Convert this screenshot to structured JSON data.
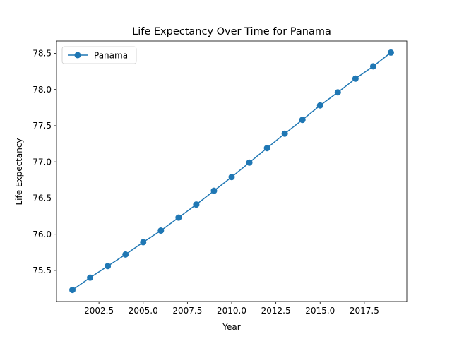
{
  "chart_data": {
    "type": "line",
    "title": "Life Expectancy Over Time for Panama",
    "xlabel": "Year",
    "ylabel": "Life Expectancy",
    "xlim": [
      2000.1,
      2019.9
    ],
    "ylim": [
      75.07,
      78.67
    ],
    "x_ticks": [
      2002.5,
      2005.0,
      2007.5,
      2010.0,
      2012.5,
      2015.0,
      2017.5
    ],
    "x_tick_labels": [
      "2002.5",
      "2005.0",
      "2007.5",
      "2010.0",
      "2012.5",
      "2015.0",
      "2017.5"
    ],
    "y_ticks": [
      75.5,
      76.0,
      76.5,
      77.0,
      77.5,
      78.0,
      78.5
    ],
    "y_tick_labels": [
      "75.5",
      "76.0",
      "76.5",
      "77.0",
      "77.5",
      "78.0",
      "78.5"
    ],
    "grid": false,
    "legend_position": "top-left",
    "colors": {
      "series": "#1f77b4"
    },
    "series": [
      {
        "name": "Panama",
        "marker": "circle",
        "x": [
          2001,
          2002,
          2003,
          2004,
          2005,
          2006,
          2007,
          2008,
          2009,
          2010,
          2011,
          2012,
          2013,
          2014,
          2015,
          2016,
          2017,
          2018,
          2019
        ],
        "y": [
          75.23,
          75.4,
          75.56,
          75.72,
          75.89,
          76.05,
          76.23,
          76.41,
          76.6,
          76.79,
          76.99,
          77.19,
          77.39,
          77.58,
          77.78,
          77.96,
          78.15,
          78.32,
          78.51
        ]
      }
    ]
  }
}
